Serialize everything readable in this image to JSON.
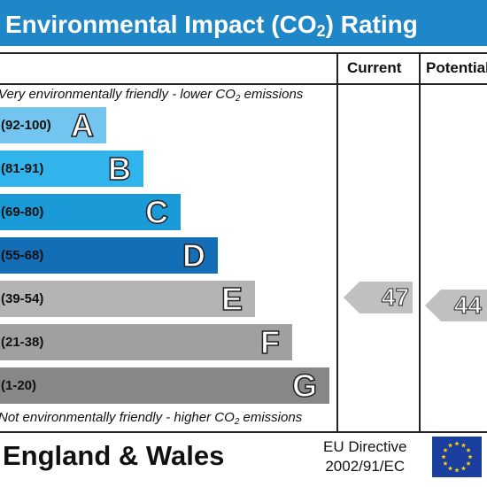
{
  "header": {
    "title_prefix": "Environmental Impact (CO",
    "title_sub": "2",
    "title_suffix": ") Rating"
  },
  "columns": {
    "current": "Current",
    "potential": "Potential"
  },
  "captions": {
    "top_prefix": "Very environmentally friendly - lower CO",
    "top_sub": "2",
    "top_suffix": " emissions",
    "bottom_prefix": "Not environmentally friendly - higher CO",
    "bottom_sub": "2",
    "bottom_suffix": " emissions"
  },
  "bands": [
    {
      "range": "(92-100)",
      "letter": "A",
      "color": "#73c5ef"
    },
    {
      "range": "(81-91)",
      "letter": "B",
      "color": "#31b4ec"
    },
    {
      "range": "(69-80)",
      "letter": "C",
      "color": "#1a9ad6"
    },
    {
      "range": "(55-68)",
      "letter": "D",
      "color": "#136eb6"
    },
    {
      "range": "(39-54)",
      "letter": "E",
      "color": "#b4b4b4"
    },
    {
      "range": "(21-38)",
      "letter": "F",
      "color": "#a0a0a0"
    },
    {
      "range": "(1-20)",
      "letter": "G",
      "color": "#878787"
    }
  ],
  "ratings": {
    "current": {
      "value": "47",
      "band": "E",
      "color": "#c0c0c0"
    },
    "potential": {
      "value": "44",
      "band": "E",
      "color": "#c0c0c0"
    }
  },
  "footer": {
    "region": "England & Wales",
    "directive_line1": "EU Directive",
    "directive_line2": "2002/91/EC",
    "flag_color": "#1b3f9e",
    "star_color": "#ffd200"
  }
}
